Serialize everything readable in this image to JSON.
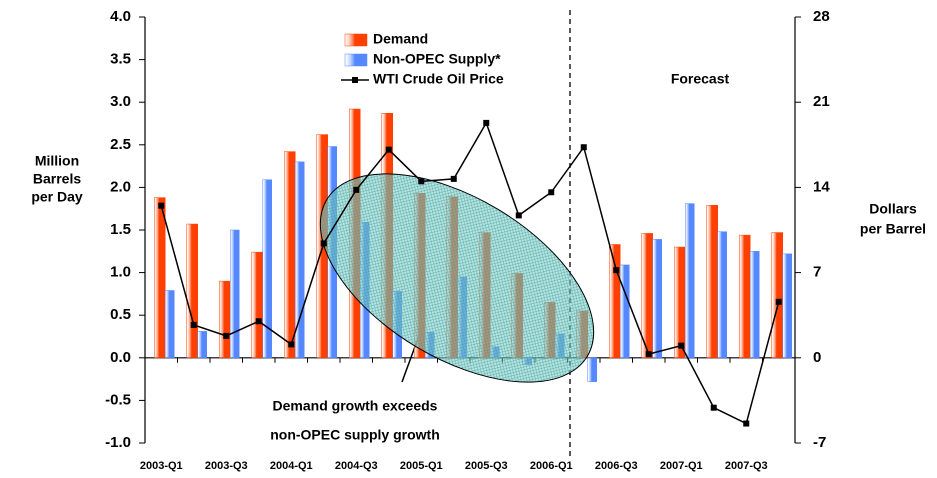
{
  "chart_data": {
    "type": "bar_line",
    "categories": [
      "2003-Q1",
      null,
      "2003-Q3",
      null,
      "2004-Q1",
      null,
      "2004-Q3",
      null,
      "2005-Q1",
      null,
      "2005-Q3",
      null,
      "2006-Q1",
      null,
      "2006-Q3",
      null,
      "2007-Q1",
      null,
      "2007-Q3",
      null
    ],
    "series": [
      {
        "name": "Demand",
        "color": "#ff4000",
        "axis": "y",
        "values": [
          1.88,
          1.57,
          0.9,
          1.24,
          2.42,
          2.62,
          2.92,
          2.87,
          1.93,
          1.89,
          1.47,
          0.99,
          0.65,
          0.55,
          1.33,
          1.46,
          1.3,
          1.79,
          1.44,
          1.47
        ]
      },
      {
        "name": "Non-OPEC Supply*",
        "color": "#5588ff",
        "axis": "y",
        "values": [
          0.79,
          0.31,
          1.5,
          2.09,
          2.3,
          2.48,
          1.59,
          0.78,
          0.3,
          0.95,
          0.13,
          -0.08,
          0.28,
          -0.28,
          1.09,
          1.39,
          1.81,
          1.48,
          1.25,
          1.22
        ]
      },
      {
        "name": "WTI Crude Oil Price",
        "color": "#000000",
        "axis": "y2",
        "values": [
          12.5,
          2.7,
          1.8,
          3.0,
          1.1,
          9.4,
          13.8,
          17.1,
          14.5,
          14.7,
          19.3,
          11.7,
          13.6,
          17.3,
          7.2,
          0.3,
          1.0,
          -4.1,
          -5.4,
          4.6
        ]
      }
    ],
    "ylabel": [
      "Million",
      "Barrels",
      "per Day"
    ],
    "y2label": [
      "Dollars",
      "per Barrel"
    ],
    "annotations": {
      "forecast": "Forecast",
      "note": [
        "Demand growth exceeds",
        "non-OPEC supply growth"
      ]
    },
    "ylim": [
      -1,
      4
    ],
    "yticks": [
      {
        "value": -1,
        "label": "-1.0"
      },
      -0.5,
      {
        "value": 0,
        "label": "0.0"
      },
      0.5,
      {
        "value": 1,
        "label": "1.0"
      },
      1.5,
      {
        "value": 2,
        "label": "2.0"
      },
      2.5,
      {
        "value": 3,
        "label": "3.0"
      },
      3.5,
      {
        "value": 4,
        "label": "4.0"
      }
    ],
    "y2lim": [
      -7,
      28
    ],
    "y2ticks": [
      -7,
      0,
      7,
      14,
      21,
      28
    ],
    "grid": false
  }
}
